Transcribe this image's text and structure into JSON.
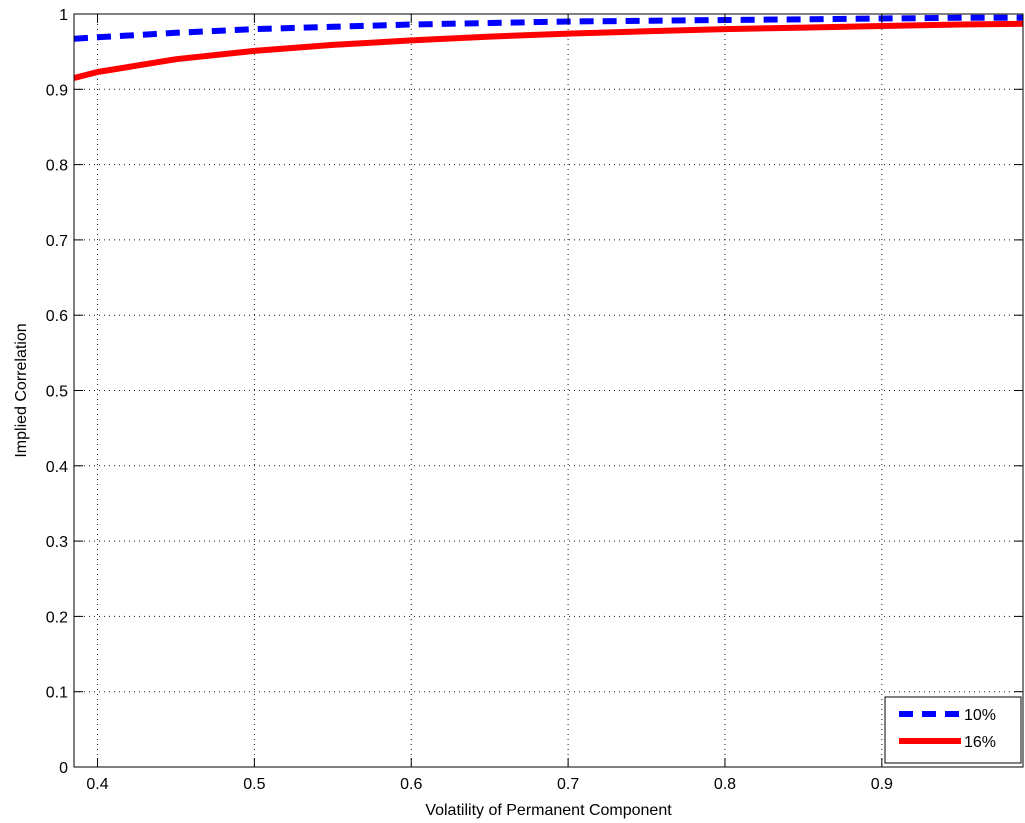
{
  "chart_data": {
    "type": "line",
    "title": "",
    "xlabel": "Volatility of Permanent Component",
    "ylabel": "Implied Correlation",
    "xlim": [
      0.385,
      0.99
    ],
    "ylim": [
      0,
      1
    ],
    "xticks": [
      0.4,
      0.5,
      0.6,
      0.7,
      0.8,
      0.9
    ],
    "xtick_labels": [
      "0.4",
      "0.5",
      "0.6",
      "0.7",
      "0.8",
      "0.9"
    ],
    "yticks": [
      0,
      0.1,
      0.2,
      0.3,
      0.4,
      0.5,
      0.6,
      0.7,
      0.8,
      0.9,
      1
    ],
    "ytick_labels": [
      "0",
      "0.1",
      "0.2",
      "0.3",
      "0.4",
      "0.5",
      "0.6",
      "0.7",
      "0.8",
      "0.9",
      "1"
    ],
    "grid": true,
    "legend_position": "bottom-right",
    "series": [
      {
        "name": "10%",
        "color": "#0000ff",
        "style": "dashed",
        "x": [
          0.385,
          0.4,
          0.45,
          0.5,
          0.55,
          0.6,
          0.65,
          0.7,
          0.75,
          0.8,
          0.85,
          0.9,
          0.95,
          0.99
        ],
        "y": [
          0.967,
          0.969,
          0.975,
          0.98,
          0.983,
          0.986,
          0.988,
          0.99,
          0.991,
          0.992,
          0.993,
          0.994,
          0.995,
          0.995
        ]
      },
      {
        "name": "16%",
        "color": "#ff0000",
        "style": "solid",
        "x": [
          0.385,
          0.4,
          0.45,
          0.5,
          0.55,
          0.6,
          0.65,
          0.7,
          0.75,
          0.8,
          0.85,
          0.9,
          0.95,
          0.99
        ],
        "y": [
          0.915,
          0.923,
          0.94,
          0.951,
          0.959,
          0.965,
          0.97,
          0.974,
          0.977,
          0.98,
          0.982,
          0.984,
          0.986,
          0.987
        ]
      }
    ]
  }
}
